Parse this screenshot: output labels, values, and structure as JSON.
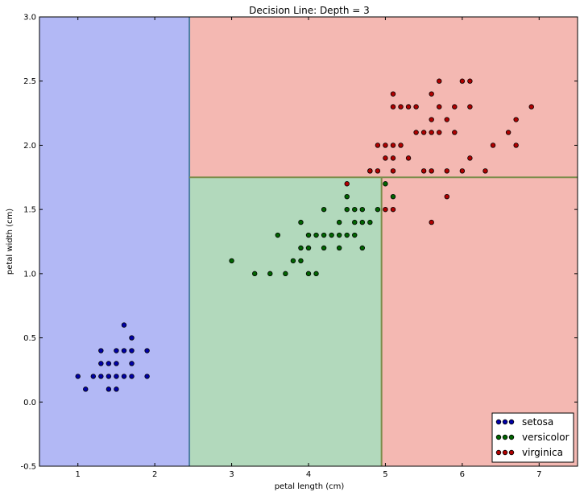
{
  "chart_data": {
    "type": "scatter",
    "title": "Decision Line: Depth = 3",
    "xlabel": "petal length (cm)",
    "ylabel": "petal width (cm)",
    "xlim": [
      0.5,
      7.5
    ],
    "ylim": [
      -0.5,
      3.0
    ],
    "xticks": [
      "1",
      "2",
      "3",
      "4",
      "5",
      "6",
      "7"
    ],
    "yticks": [
      "-0.5",
      "0.0",
      "0.5",
      "1.0",
      "1.5",
      "2.0",
      "2.5",
      "3.0"
    ],
    "grid": false,
    "legend_position": "bottom-right",
    "regions": [
      {
        "x0": 0.5,
        "x1": 2.45,
        "y0": -0.5,
        "y1": 3.0,
        "class": "setosa",
        "color": "#b2b8f5"
      },
      {
        "x0": 2.45,
        "x1": 7.5,
        "y0": 1.75,
        "y1": 3.0,
        "class": "virginica",
        "color": "#f4b8b2"
      },
      {
        "x0": 4.95,
        "x1": 7.5,
        "y0": -0.5,
        "y1": 1.75,
        "class": "virginica",
        "color": "#f4b8b2"
      },
      {
        "x0": 2.45,
        "x1": 4.95,
        "y0": -0.5,
        "y1": 1.75,
        "class": "versicolor",
        "color": "#b2d9bc"
      }
    ],
    "boundaries": [
      {
        "x1": 2.45,
        "y1": -0.5,
        "x2": 2.45,
        "y2": 3.0,
        "color": "#4e7fa0"
      },
      {
        "x1": 2.45,
        "y1": 1.75,
        "x2": 7.5,
        "y2": 1.75,
        "color": "#7a8c4a"
      },
      {
        "x1": 4.95,
        "y1": -0.5,
        "x2": 4.95,
        "y2": 1.75,
        "color": "#7a8c4a"
      }
    ],
    "series": [
      {
        "name": "setosa",
        "color": "#0000a8",
        "points": [
          [
            1.0,
            0.2
          ],
          [
            1.1,
            0.1
          ],
          [
            1.2,
            0.2
          ],
          [
            1.3,
            0.2
          ],
          [
            1.3,
            0.3
          ],
          [
            1.3,
            0.4
          ],
          [
            1.4,
            0.1
          ],
          [
            1.4,
            0.2
          ],
          [
            1.4,
            0.3
          ],
          [
            1.5,
            0.1
          ],
          [
            1.5,
            0.2
          ],
          [
            1.5,
            0.3
          ],
          [
            1.5,
            0.4
          ],
          [
            1.6,
            0.2
          ],
          [
            1.6,
            0.4
          ],
          [
            1.6,
            0.6
          ],
          [
            1.7,
            0.2
          ],
          [
            1.7,
            0.3
          ],
          [
            1.7,
            0.4
          ],
          [
            1.7,
            0.5
          ],
          [
            1.9,
            0.2
          ],
          [
            1.9,
            0.4
          ]
        ]
      },
      {
        "name": "versicolor",
        "color": "#006400",
        "points": [
          [
            3.0,
            1.1
          ],
          [
            3.3,
            1.0
          ],
          [
            3.5,
            1.0
          ],
          [
            3.6,
            1.3
          ],
          [
            3.7,
            1.0
          ],
          [
            3.8,
            1.1
          ],
          [
            3.9,
            1.1
          ],
          [
            3.9,
            1.2
          ],
          [
            3.9,
            1.4
          ],
          [
            4.0,
            1.0
          ],
          [
            4.0,
            1.2
          ],
          [
            4.0,
            1.3
          ],
          [
            4.1,
            1.0
          ],
          [
            4.1,
            1.3
          ],
          [
            4.2,
            1.2
          ],
          [
            4.2,
            1.3
          ],
          [
            4.2,
            1.5
          ],
          [
            4.3,
            1.3
          ],
          [
            4.4,
            1.2
          ],
          [
            4.4,
            1.3
          ],
          [
            4.4,
            1.4
          ],
          [
            4.5,
            1.3
          ],
          [
            4.5,
            1.5
          ],
          [
            4.5,
            1.6
          ],
          [
            4.6,
            1.3
          ],
          [
            4.6,
            1.4
          ],
          [
            4.6,
            1.5
          ],
          [
            4.7,
            1.2
          ],
          [
            4.7,
            1.4
          ],
          [
            4.7,
            1.5
          ],
          [
            4.8,
            1.4
          ],
          [
            4.8,
            1.8
          ],
          [
            4.9,
            1.5
          ],
          [
            5.0,
            1.7
          ],
          [
            5.1,
            1.6
          ]
        ]
      },
      {
        "name": "virginica",
        "color": "#b00000",
        "points": [
          [
            4.5,
            1.7
          ],
          [
            4.8,
            1.8
          ],
          [
            4.9,
            1.8
          ],
          [
            4.9,
            2.0
          ],
          [
            5.0,
            1.5
          ],
          [
            5.0,
            1.9
          ],
          [
            5.0,
            2.0
          ],
          [
            5.1,
            1.5
          ],
          [
            5.1,
            1.8
          ],
          [
            5.1,
            1.9
          ],
          [
            5.1,
            2.0
          ],
          [
            5.1,
            2.3
          ],
          [
            5.1,
            2.4
          ],
          [
            5.2,
            2.0
          ],
          [
            5.2,
            2.3
          ],
          [
            5.3,
            1.9
          ],
          [
            5.3,
            2.3
          ],
          [
            5.4,
            2.1
          ],
          [
            5.4,
            2.3
          ],
          [
            5.5,
            1.8
          ],
          [
            5.5,
            2.1
          ],
          [
            5.6,
            1.4
          ],
          [
            5.6,
            1.8
          ],
          [
            5.6,
            2.1
          ],
          [
            5.6,
            2.2
          ],
          [
            5.6,
            2.4
          ],
          [
            5.7,
            2.1
          ],
          [
            5.7,
            2.3
          ],
          [
            5.7,
            2.5
          ],
          [
            5.8,
            1.6
          ],
          [
            5.8,
            1.8
          ],
          [
            5.8,
            2.2
          ],
          [
            5.9,
            2.1
          ],
          [
            5.9,
            2.3
          ],
          [
            6.0,
            1.8
          ],
          [
            6.0,
            2.5
          ],
          [
            6.1,
            1.9
          ],
          [
            6.1,
            2.3
          ],
          [
            6.1,
            2.5
          ],
          [
            6.3,
            1.8
          ],
          [
            6.4,
            2.0
          ],
          [
            6.6,
            2.1
          ],
          [
            6.7,
            2.0
          ],
          [
            6.7,
            2.2
          ],
          [
            6.9,
            2.3
          ]
        ]
      }
    ]
  }
}
